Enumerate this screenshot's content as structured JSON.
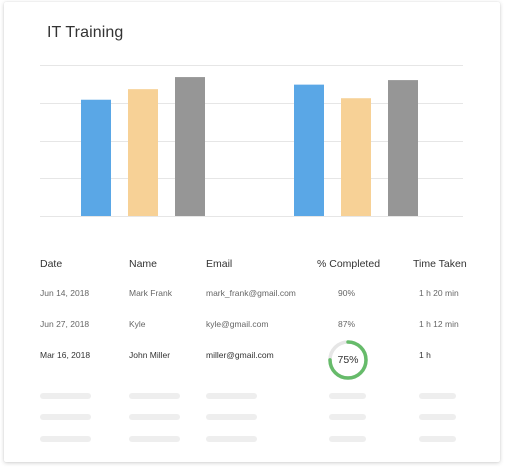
{
  "title": "IT Training",
  "colors": {
    "blue": "#5aa7e6",
    "peach": "#f7d196",
    "gray": "#969696",
    "grid": "#e6e6e6",
    "ring_fill": "#66bb6a",
    "ring_track": "#e6e6e6"
  },
  "chart_data": {
    "type": "bar",
    "title": "",
    "categories": [
      "",
      ""
    ],
    "series": [
      {
        "values": [
          77,
          87
        ]
      },
      {
        "values": [
          84,
          78
        ]
      },
      {
        "values": [
          92,
          90
        ]
      }
    ],
    "ylim": [
      0,
      100
    ],
    "grid": true
  },
  "table": {
    "headers": [
      "Date",
      "Name",
      "Email",
      "% Completed",
      "Time Taken"
    ],
    "rows": [
      {
        "date": "Jun 14, 2018",
        "name": "Mark Frank",
        "email": "mark_frank@gmail.com",
        "completed": "90%",
        "time": "1 h 20 min"
      },
      {
        "date": "Jun 27, 2018",
        "name": "Kyle",
        "email": "kyle@gmail.com",
        "completed": "87%",
        "time": "1 h 12 min"
      },
      {
        "date": "Mar 16, 2018",
        "name": "John Miller",
        "email": "miller@gmail.com",
        "completed": "75%",
        "completed_fraction": 0.75,
        "time": "1 h"
      }
    ]
  }
}
